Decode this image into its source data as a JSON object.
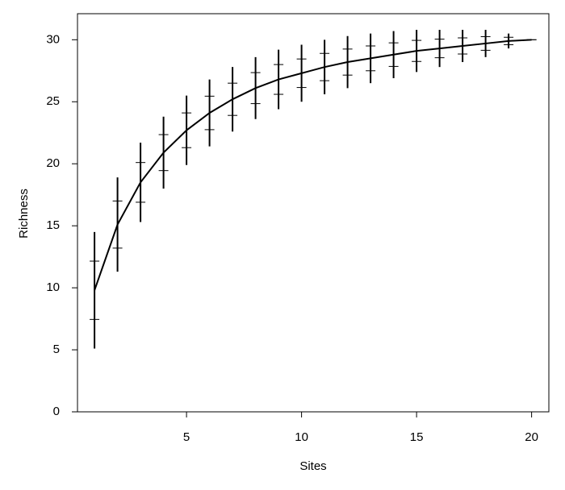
{
  "chart_data": {
    "type": "line",
    "x_label": "Sites",
    "y_label": "Richness",
    "x": [
      1,
      2,
      3,
      4,
      5,
      6,
      7,
      8,
      9,
      10,
      11,
      12,
      13,
      14,
      15,
      16,
      17,
      18,
      19,
      20
    ],
    "values": [
      9.8,
      15.1,
      18.5,
      20.9,
      22.7,
      24.1,
      25.2,
      26.1,
      26.8,
      27.3,
      27.8,
      28.2,
      28.5,
      28.8,
      29.1,
      29.3,
      29.5,
      29.7,
      29.9,
      30
    ],
    "errors": [
      2.35,
      1.9,
      1.6,
      1.45,
      1.4,
      1.35,
      1.3,
      1.25,
      1.2,
      1.15,
      1.1,
      1.05,
      1.0,
      0.95,
      0.85,
      0.75,
      0.65,
      0.55,
      0.3,
      0
    ],
    "color": "#000000",
    "xlim": [
      0.26,
      20.75
    ],
    "ylim": [
      0,
      32.1
    ],
    "xticks": [
      5,
      10,
      15,
      20
    ],
    "yticks": [
      0,
      5,
      10,
      15,
      20,
      25,
      30
    ]
  }
}
